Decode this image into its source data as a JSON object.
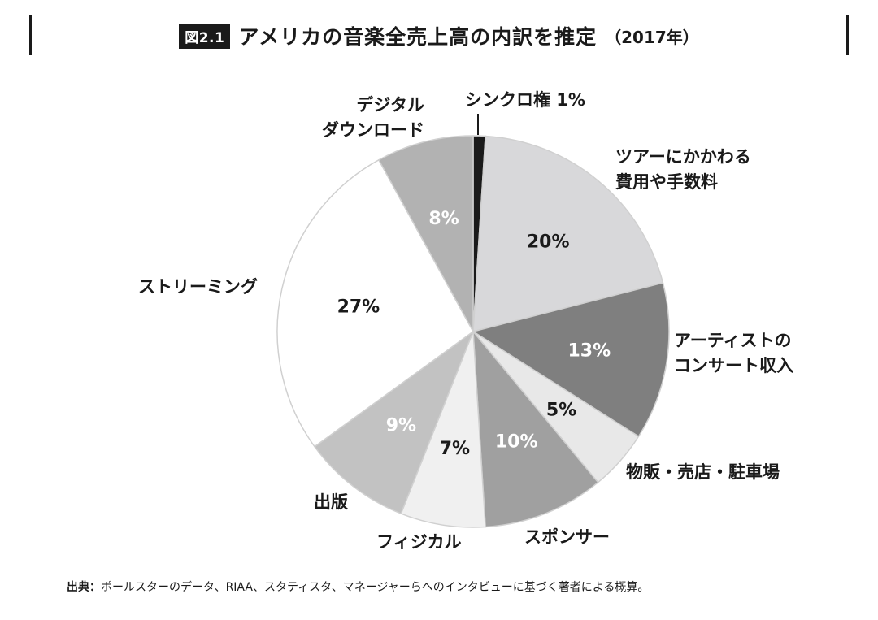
{
  "header": {
    "figure_label": "図2.1",
    "title": "アメリカの音楽全売上高の内訳を推定",
    "year": "（2017年）"
  },
  "chart_data": {
    "type": "pie",
    "title": "アメリカの音楽全売上高の内訳を推定（2017年）",
    "unit": "%",
    "start": "12 o'clock",
    "direction": "clockwise",
    "slices": [
      {
        "label": "シンクロ権",
        "value": 1,
        "value_label": "",
        "color": "#1a1a1a"
      },
      {
        "label": "ツアーにかかわる費用や手数料",
        "value": 20,
        "value_label": "20%",
        "color": "#d8d8da"
      },
      {
        "label": "アーティストのコンサート収入",
        "value": 13,
        "value_label": "13%",
        "color": "#7f7f7f"
      },
      {
        "label": "物販・売店・駐車場",
        "value": 5,
        "value_label": "5%",
        "color": "#e8e8e8"
      },
      {
        "label": "スポンサー",
        "value": 10,
        "value_label": "10%",
        "color": "#a0a0a0"
      },
      {
        "label": "フィジカル",
        "value": 7,
        "value_label": "7%",
        "color": "#f0f0f0"
      },
      {
        "label": "出版",
        "value": 9,
        "value_label": "9%",
        "color": "#c2c2c2"
      },
      {
        "label": "ストリーミング",
        "value": 27,
        "value_label": "27%",
        "color": "#ffffff"
      },
      {
        "label": "デジタルダウンロード",
        "value": 8,
        "value_label": "8%",
        "color": "#b2b2b2"
      }
    ],
    "outside_labels": [
      {
        "lines": [
          "シンクロ権 1%"
        ]
      },
      {
        "lines": [
          "ツアーにかかわる",
          "費用や手数料"
        ]
      },
      {
        "lines": [
          "アーティストの",
          "コンサート収入"
        ]
      },
      {
        "lines": [
          "物販・売店・駐車場"
        ]
      },
      {
        "lines": [
          "スポンサー"
        ]
      },
      {
        "lines": [
          "フィジカル"
        ]
      },
      {
        "lines": [
          "出版"
        ]
      },
      {
        "lines": [
          "ストリーミング"
        ]
      },
      {
        "lines": [
          "デジタル",
          "ダウンロード"
        ]
      }
    ]
  },
  "source": {
    "label": "出典：",
    "text": "ポールスターのデータ、RIAA、スタティスタ、マネージャーらへのインタビューに基づく著者による概算。"
  }
}
